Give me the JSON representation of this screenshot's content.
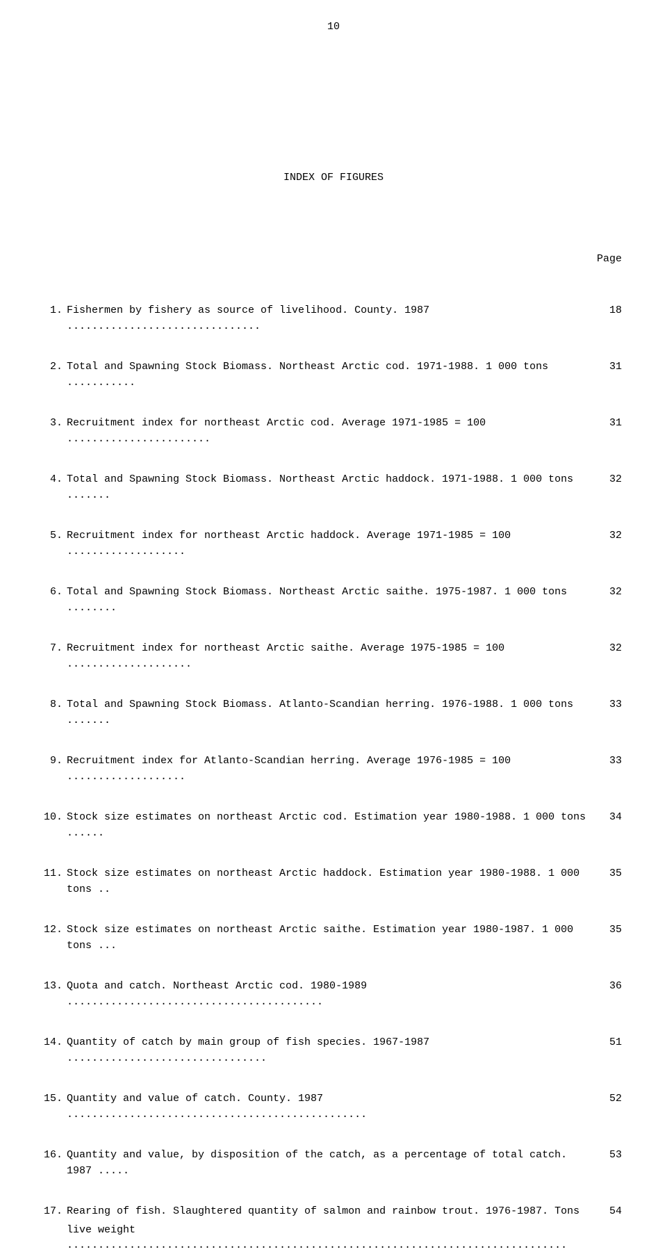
{
  "page_number": "10",
  "title": "INDEX OF FIGURES",
  "page_label": "Page",
  "entries": [
    {
      "num": "1.",
      "text": "Fishermen by fishery as source of livelihood.  County.  1987 ...............................",
      "page": "18"
    },
    {
      "num": "2.",
      "text": "Total and Spawning Stock Biomass.  Northeast Arctic cod.  1971-1988.  1 000 tons ...........",
      "page": "31"
    },
    {
      "num": "3.",
      "text": "Recruitment index for northeast Arctic cod.  Average 1971-1985 = 100 .......................",
      "page": "31"
    },
    {
      "num": "4.",
      "text": "Total and Spawning Stock Biomass.  Northeast Arctic haddock.  1971-1988.  1 000 tons .......",
      "page": "32"
    },
    {
      "num": "5.",
      "text": "Recruitment index for northeast Arctic haddock.  Average 1971-1985 = 100 ...................",
      "page": "32"
    },
    {
      "num": "6.",
      "text": "Total and Spawning Stock Biomass.  Northeast Arctic saithe.  1975-1987.  1 000 tons ........",
      "page": "32"
    },
    {
      "num": "7.",
      "text": "Recruitment index for northeast Arctic saithe.  Average 1975-1985 = 100 ....................",
      "page": "32"
    },
    {
      "num": "8.",
      "text": "Total and Spawning Stock Biomass.  Atlanto-Scandian herring.  1976-1988.  1 000 tons .......",
      "page": "33"
    },
    {
      "num": "9.",
      "text": "Recruitment index for Atlanto-Scandian herring.  Average 1976-1985 = 100 ...................",
      "page": "33"
    },
    {
      "num": "10.",
      "text": "Stock size estimates on northeast Arctic cod.  Estimation year 1980-1988.  1 000 tons ......",
      "page": "34"
    },
    {
      "num": "11.",
      "text": "Stock size estimates on northeast Arctic haddock.  Estimation year 1980-1988.  1 000 tons ..",
      "page": "35"
    },
    {
      "num": "12.",
      "text": "Stock size estimates on northeast Arctic saithe.  Estimation year 1980-1987.  1 000 tons ...",
      "page": "35"
    },
    {
      "num": "13.",
      "text": "Quota and catch.  Northeast Arctic cod.  1980-1989 .........................................",
      "page": "36"
    },
    {
      "num": "14.",
      "text": "Quantity of catch by main group of fish species.  1967-1987 ................................",
      "page": "51"
    },
    {
      "num": "15.",
      "text": "Quantity and value of catch.  County.  1987 ................................................",
      "page": "52"
    },
    {
      "num": "16.",
      "text": "Quantity and value, by disposition of the catch, as a percentage of total catch.  1987 .....",
      "page": "53"
    },
    {
      "num": "17.",
      "text": "Rearing of fish.  Slaughtered quantity of salmon and rainbow trout.  1976-1987.  Tons",
      "text2": "live weight ................................................................................",
      "page": "54"
    }
  ]
}
